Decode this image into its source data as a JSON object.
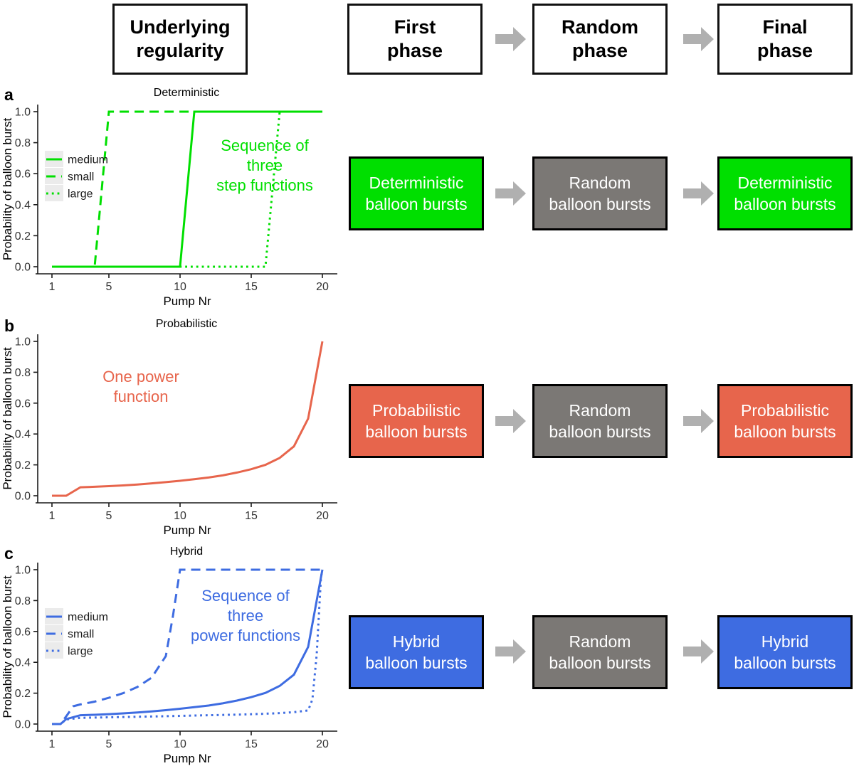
{
  "colors": {
    "green": "#00df00",
    "salmon": "#e7654c",
    "blue": "#3e6ce1",
    "gray_box": "#7b7875",
    "arrow_gray": "#b0b0b0",
    "legend_key_bg": "#ebebeb",
    "axis_line": "#1a1a1a",
    "tick_text": "#333333"
  },
  "header": {
    "regularity_box": {
      "lines": [
        "Underlying",
        "regularity"
      ]
    },
    "phase_boxes": [
      {
        "lines": [
          "First",
          "phase"
        ]
      },
      {
        "lines": [
          "Random",
          "phase"
        ]
      },
      {
        "lines": [
          "Final",
          "phase"
        ]
      }
    ]
  },
  "flow_rows": [
    {
      "panel": "a",
      "boxes": [
        {
          "lines": [
            "Deterministic",
            "balloon bursts"
          ]
        },
        {
          "lines": [
            "Random",
            "balloon bursts"
          ]
        },
        {
          "lines": [
            "Deterministic",
            "balloon bursts"
          ]
        }
      ]
    },
    {
      "panel": "b",
      "boxes": [
        {
          "lines": [
            "Probabilistic",
            "balloon bursts"
          ]
        },
        {
          "lines": [
            "Random",
            "balloon bursts"
          ]
        },
        {
          "lines": [
            "Probabilistic",
            "balloon bursts"
          ]
        }
      ]
    },
    {
      "panel": "c",
      "boxes": [
        {
          "lines": [
            "Hybrid",
            "balloon bursts"
          ]
        },
        {
          "lines": [
            "Random",
            "balloon bursts"
          ]
        },
        {
          "lines": [
            "Hybrid",
            "balloon bursts"
          ]
        }
      ]
    }
  ],
  "chart_data": [
    {
      "type": "line",
      "panel_label": "a",
      "title": "Deterministic",
      "xlabel": "Pump Nr",
      "ylabel": "Probability of balloon burst",
      "xlim": [
        1,
        20
      ],
      "ylim": [
        0,
        1
      ],
      "xticks": [
        1,
        5,
        10,
        15,
        20
      ],
      "yticks": [
        0,
        0.2,
        0.4,
        0.6,
        0.8,
        1.0
      ],
      "ytick_labels": [
        "0.0",
        "0.2",
        "0.4",
        "0.6",
        "0.8",
        "1.0"
      ],
      "grid": false,
      "legend_position": "left",
      "line_color": "#00df00",
      "legend": {
        "entries": [
          {
            "label": "medium",
            "linetype": "solid"
          },
          {
            "label": "small",
            "linetype": "dashed"
          },
          {
            "label": "large",
            "linetype": "dotted"
          }
        ]
      },
      "annotation": {
        "lines": [
          "Sequence of",
          "three",
          "step functions"
        ],
        "color": "#00df00"
      },
      "series": [
        {
          "name": "small",
          "linetype": "dashed",
          "points": [
            [
              1,
              0
            ],
            [
              4,
              0
            ],
            [
              5,
              1
            ],
            [
              20,
              1
            ]
          ]
        },
        {
          "name": "medium",
          "linetype": "solid",
          "points": [
            [
              1,
              0
            ],
            [
              10,
              0
            ],
            [
              11,
              1
            ],
            [
              20,
              1
            ]
          ]
        },
        {
          "name": "large",
          "linetype": "dotted",
          "points": [
            [
              1,
              0
            ],
            [
              16,
              0
            ],
            [
              17,
              1
            ],
            [
              20,
              1
            ]
          ]
        }
      ]
    },
    {
      "type": "line",
      "panel_label": "b",
      "title": "Probabilistic",
      "xlabel": "Pump Nr",
      "ylabel": "Probability of balloon burst",
      "xlim": [
        1,
        20
      ],
      "ylim": [
        0,
        1
      ],
      "xticks": [
        1,
        5,
        10,
        15,
        20
      ],
      "yticks": [
        0,
        0.2,
        0.4,
        0.6,
        0.8,
        1.0
      ],
      "ytick_labels": [
        "0.0",
        "0.2",
        "0.4",
        "0.6",
        "0.8",
        "1.0"
      ],
      "grid": false,
      "legend_position": "none",
      "line_color": "#e7654c",
      "annotation": {
        "lines": [
          "One power",
          "function"
        ],
        "color": "#e7654c"
      },
      "series": [
        {
          "name": "power",
          "linetype": "solid",
          "points": [
            [
              1,
              0
            ],
            [
              2,
              0
            ],
            [
              3,
              0.055
            ],
            [
              4,
              0.058
            ],
            [
              5,
              0.062
            ],
            [
              6,
              0.067
            ],
            [
              7,
              0.073
            ],
            [
              8,
              0.08
            ],
            [
              9,
              0.088
            ],
            [
              10,
              0.097
            ],
            [
              11,
              0.107
            ],
            [
              12,
              0.118
            ],
            [
              13,
              0.132
            ],
            [
              14,
              0.15
            ],
            [
              15,
              0.172
            ],
            [
              16,
              0.2
            ],
            [
              17,
              0.245
            ],
            [
              18,
              0.32
            ],
            [
              19,
              0.5
            ],
            [
              20,
              1.0
            ]
          ]
        }
      ]
    },
    {
      "type": "line",
      "panel_label": "c",
      "title": "Hybrid",
      "xlabel": "Pump Nr",
      "ylabel": "Probability of balloon burst",
      "xlim": [
        1,
        20
      ],
      "ylim": [
        0,
        1
      ],
      "xticks": [
        1,
        5,
        10,
        15,
        20
      ],
      "yticks": [
        0,
        0.2,
        0.4,
        0.6,
        0.8,
        1.0
      ],
      "ytick_labels": [
        "0.0",
        "0.2",
        "0.4",
        "0.6",
        "0.8",
        "1.0"
      ],
      "grid": false,
      "legend_position": "left",
      "line_color": "#3e6ce1",
      "legend": {
        "entries": [
          {
            "label": "medium",
            "linetype": "solid"
          },
          {
            "label": "small",
            "linetype": "dashed"
          },
          {
            "label": "large",
            "linetype": "dotted"
          }
        ]
      },
      "annotation": {
        "lines": [
          "Sequence of",
          "three",
          "power functions"
        ],
        "color": "#3e6ce1"
      },
      "series": [
        {
          "name": "small",
          "linetype": "dashed",
          "points": [
            [
              1,
              0
            ],
            [
              1.6,
              0
            ],
            [
              2,
              0.05
            ],
            [
              2.5,
              0.115
            ],
            [
              3,
              0.127
            ],
            [
              4,
              0.145
            ],
            [
              5,
              0.17
            ],
            [
              6,
              0.2
            ],
            [
              7,
              0.24
            ],
            [
              8,
              0.3
            ],
            [
              9,
              0.44
            ],
            [
              9.5,
              0.7
            ],
            [
              10,
              1.0
            ],
            [
              20,
              1.0
            ]
          ]
        },
        {
          "name": "medium",
          "linetype": "solid",
          "points": [
            [
              1,
              0
            ],
            [
              1.6,
              0
            ],
            [
              2,
              0.032
            ],
            [
              3,
              0.057
            ],
            [
              4,
              0.06
            ],
            [
              5,
              0.064
            ],
            [
              6,
              0.069
            ],
            [
              7,
              0.075
            ],
            [
              8,
              0.082
            ],
            [
              9,
              0.09
            ],
            [
              10,
              0.099
            ],
            [
              11,
              0.109
            ],
            [
              12,
              0.12
            ],
            [
              13,
              0.134
            ],
            [
              14,
              0.152
            ],
            [
              15,
              0.174
            ],
            [
              16,
              0.202
            ],
            [
              17,
              0.247
            ],
            [
              18,
              0.32
            ],
            [
              19,
              0.5
            ],
            [
              20,
              1.0
            ]
          ]
        },
        {
          "name": "large",
          "linetype": "dotted",
          "points": [
            [
              1,
              0
            ],
            [
              1.6,
              0
            ],
            [
              2,
              0.03
            ],
            [
              3,
              0.04
            ],
            [
              5,
              0.044
            ],
            [
              8,
              0.049
            ],
            [
              10,
              0.053
            ],
            [
              12,
              0.057
            ],
            [
              14,
              0.061
            ],
            [
              16,
              0.067
            ],
            [
              17,
              0.071
            ],
            [
              18,
              0.077
            ],
            [
              19,
              0.088
            ],
            [
              19.3,
              0.16
            ],
            [
              19.6,
              0.45
            ],
            [
              19.9,
              0.95
            ],
            [
              20,
              1.0
            ]
          ]
        }
      ]
    }
  ]
}
